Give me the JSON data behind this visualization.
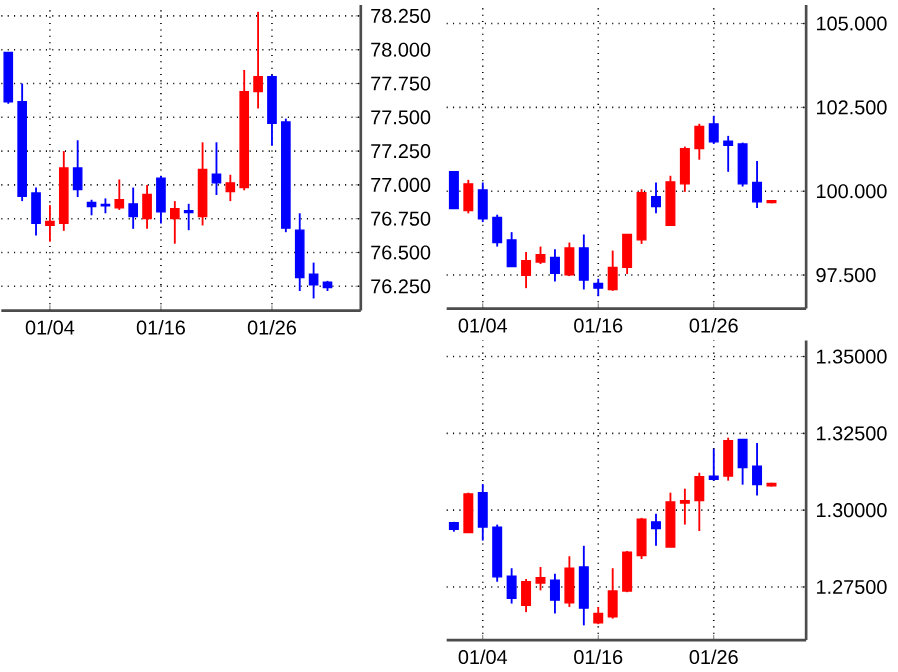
{
  "chart_data": [
    {
      "type": "candlestick",
      "grid": true,
      "categories": [
        null,
        null,
        null,
        "01/04",
        null,
        null,
        null,
        null,
        null,
        null,
        null,
        "01/16",
        null,
        null,
        null,
        null,
        null,
        null,
        null,
        "01/26",
        null,
        null,
        null,
        null
      ],
      "ohlc": [
        [
          77.98,
          77.98,
          77.6,
          77.615
        ],
        [
          77.615,
          77.75,
          76.88,
          76.915
        ],
        [
          76.94,
          76.98,
          76.625,
          76.715
        ],
        [
          76.7,
          76.85,
          76.58,
          76.73
        ],
        [
          76.715,
          77.25,
          76.66,
          77.125
        ],
        [
          77.125,
          77.33,
          76.91,
          76.965
        ],
        [
          76.87,
          76.89,
          76.775,
          76.84
        ],
        [
          76.855,
          76.9,
          76.79,
          76.845
        ],
        [
          76.83,
          77.04,
          76.815,
          76.89
        ],
        [
          76.86,
          76.98,
          76.675,
          76.765
        ],
        [
          76.75,
          77.0,
          76.675,
          76.93
        ],
        [
          77.05,
          77.065,
          76.715,
          76.8
        ],
        [
          76.75,
          76.88,
          76.565,
          76.825
        ],
        [
          76.81,
          76.86,
          76.665,
          76.795
        ],
        [
          76.765,
          77.315,
          76.7,
          77.115
        ],
        [
          77.08,
          77.315,
          76.925,
          77.015
        ],
        [
          76.95,
          77.075,
          76.88,
          77.015
        ],
        [
          76.98,
          77.85,
          76.96,
          77.69
        ],
        [
          77.69,
          78.28,
          77.565,
          77.8
        ],
        [
          77.8,
          77.815,
          77.29,
          77.455
        ],
        [
          77.465,
          77.49,
          76.65,
          76.68
        ],
        [
          76.665,
          76.79,
          76.215,
          76.315
        ],
        [
          76.34,
          76.425,
          76.16,
          76.26
        ],
        [
          76.28,
          76.29,
          76.215,
          76.24
        ]
      ],
      "colors": [
        "#0000ff",
        "#0000ff",
        "#0000ff",
        "#ff0000",
        "#ff0000",
        "#0000ff",
        "#0000ff",
        "#0000ff",
        "#ff0000",
        "#0000ff",
        "#ff0000",
        "#0000ff",
        "#ff0000",
        "#0000ff",
        "#ff0000",
        "#0000ff",
        "#ff0000",
        "#ff0000",
        "#ff0000",
        "#0000ff",
        "#0000ff",
        "#0000ff",
        "#0000ff",
        "#0000ff"
      ],
      "ylim": [
        76.07,
        78.33
      ],
      "yticks": [
        {
          "value": 76.25,
          "label": "76.250"
        },
        {
          "value": 76.5,
          "label": "76.500"
        },
        {
          "value": 76.75,
          "label": "76.750"
        },
        {
          "value": 77.0,
          "label": "77.000"
        },
        {
          "value": 77.25,
          "label": "77.250"
        },
        {
          "value": 77.5,
          "label": "77.500"
        },
        {
          "value": 77.75,
          "label": "77.750"
        },
        {
          "value": 78.0,
          "label": "78.000"
        },
        {
          "value": 78.25,
          "label": "78.250"
        }
      ]
    },
    {
      "type": "candlestick",
      "grid": true,
      "categories": [
        null,
        null,
        "01/04",
        null,
        null,
        null,
        null,
        null,
        null,
        null,
        "01/16",
        null,
        null,
        null,
        null,
        null,
        null,
        null,
        "01/26",
        null,
        null,
        null,
        null
      ],
      "ohlc": [
        [
          100.58,
          100.6,
          99.48,
          99.48
        ],
        [
          99.42,
          100.34,
          99.34,
          100.22
        ],
        [
          100.04,
          100.26,
          99.08,
          99.18
        ],
        [
          99.22,
          99.3,
          98.35,
          98.47
        ],
        [
          98.55,
          98.78,
          97.75,
          97.75
        ],
        [
          97.49,
          98.19,
          97.11,
          97.93
        ],
        [
          97.89,
          98.35,
          97.83,
          98.11
        ],
        [
          98.03,
          98.27,
          97.31,
          97.55
        ],
        [
          97.51,
          98.47,
          97.47,
          98.31
        ],
        [
          98.31,
          98.71,
          97.07,
          97.35
        ],
        [
          97.25,
          97.39,
          96.87,
          97.11
        ],
        [
          97.07,
          98.23,
          97.03,
          97.73
        ],
        [
          97.73,
          98.71,
          97.53,
          98.71
        ],
        [
          98.55,
          100.06,
          98.43,
          99.96
        ],
        [
          99.84,
          100.26,
          99.34,
          99.54
        ],
        [
          98.98,
          100.46,
          98.98,
          100.28
        ],
        [
          100.22,
          101.33,
          99.98,
          101.27
        ],
        [
          101.27,
          102.01,
          100.94,
          101.93
        ],
        [
          102.01,
          102.25,
          101.41,
          101.47
        ],
        [
          101.49,
          101.65,
          100.58,
          101.37
        ],
        [
          101.41,
          101.45,
          100.14,
          100.22
        ],
        [
          100.26,
          100.9,
          99.5,
          99.68
        ],
        [
          99.66,
          99.74,
          99.64,
          99.72
        ]
      ],
      "colors": [
        "#0000ff",
        "#ff0000",
        "#0000ff",
        "#0000ff",
        "#0000ff",
        "#ff0000",
        "#ff0000",
        "#0000ff",
        "#ff0000",
        "#0000ff",
        "#0000ff",
        "#ff0000",
        "#ff0000",
        "#ff0000",
        "#0000ff",
        "#ff0000",
        "#ff0000",
        "#ff0000",
        "#0000ff",
        "#0000ff",
        "#0000ff",
        "#0000ff",
        "#ff0000"
      ],
      "ylim": [
        96.5,
        105.55
      ],
      "yticks": [
        {
          "value": 97.5,
          "label": "97.500"
        },
        {
          "value": 100,
          "label": "100.000"
        },
        {
          "value": 102.5,
          "label": "102.500"
        },
        {
          "value": 105,
          "label": "105.000"
        }
      ]
    },
    {
      "type": "candlestick",
      "grid": true,
      "categories": [
        null,
        null,
        "01/04",
        null,
        null,
        null,
        null,
        null,
        null,
        null,
        "01/16",
        null,
        null,
        null,
        null,
        null,
        null,
        null,
        "01/26",
        null,
        null,
        null,
        null
      ],
      "ohlc": [
        [
          1.2959,
          1.2962,
          1.293,
          1.2938
        ],
        [
          1.2927,
          1.3057,
          1.2927,
          1.3053
        ],
        [
          1.3057,
          1.3085,
          1.2901,
          1.2945
        ],
        [
          1.2945,
          1.2953,
          1.2767,
          1.2783
        ],
        [
          1.2785,
          1.2811,
          1.2696,
          1.2713
        ],
        [
          1.269,
          1.2776,
          1.2668,
          1.2767
        ],
        [
          1.2763,
          1.2815,
          1.2739,
          1.278
        ],
        [
          1.2772,
          1.2793,
          1.2664,
          1.2707
        ],
        [
          1.2698,
          1.285,
          1.2685,
          1.2811
        ],
        [
          1.2815,
          1.2884,
          1.2625,
          1.2681
        ],
        [
          1.2633,
          1.2685,
          1.2629,
          1.2664
        ],
        [
          1.2653,
          1.2811,
          1.2647,
          1.2737
        ],
        [
          1.2737,
          1.2867,
          1.2733,
          1.2863
        ],
        [
          1.2852,
          1.2975,
          1.2841,
          1.2971
        ],
        [
          1.2962,
          1.2988,
          1.2884,
          1.294
        ],
        [
          1.288,
          1.3057,
          1.288,
          1.3027
        ],
        [
          1.3023,
          1.307,
          1.2953,
          1.3031
        ],
        [
          1.3031,
          1.3122,
          1.2932,
          1.3109
        ],
        [
          1.3111,
          1.32,
          1.3096,
          1.31
        ],
        [
          1.3111,
          1.3236,
          1.3096,
          1.3226
        ],
        [
          1.323,
          1.323,
          1.3083,
          1.3139
        ],
        [
          1.3143,
          1.3219,
          1.3048,
          1.3083
        ],
        [
          1.3079,
          1.3089,
          1.3077,
          1.3087
        ]
      ],
      "colors": [
        "#0000ff",
        "#ff0000",
        "#0000ff",
        "#0000ff",
        "#0000ff",
        "#ff0000",
        "#ff0000",
        "#0000ff",
        "#ff0000",
        "#0000ff",
        "#ff0000",
        "#ff0000",
        "#ff0000",
        "#ff0000",
        "#0000ff",
        "#ff0000",
        "#ff0000",
        "#ff0000",
        "#0000ff",
        "#ff0000",
        "#0000ff",
        "#0000ff",
        "#ff0000"
      ],
      "ylim": [
        1.2577,
        1.3552
      ],
      "yticks": [
        {
          "value": 1.275,
          "label": "1.27500"
        },
        {
          "value": 1.3,
          "label": "1.30000"
        },
        {
          "value": 1.325,
          "label": "1.32500"
        },
        {
          "value": 1.35,
          "label": "1.35000"
        }
      ]
    }
  ]
}
